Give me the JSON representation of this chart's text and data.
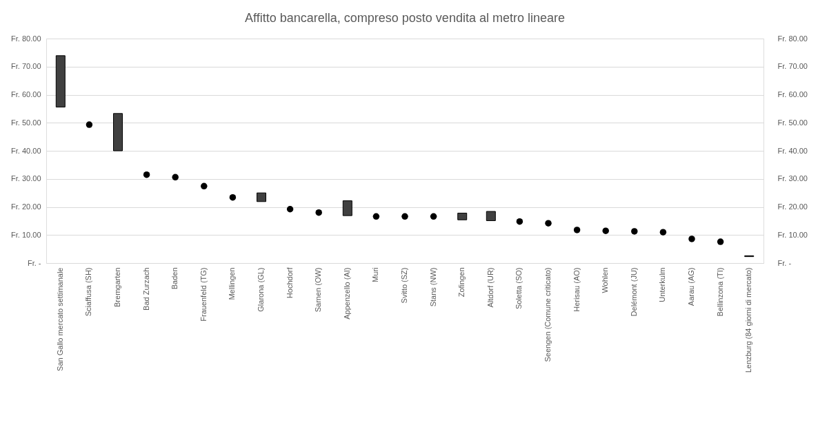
{
  "chart_data": {
    "type": "bar",
    "title": "Affitto bancarella, compreso posto vendita al metro lineare",
    "categories": [
      "San Gallo mercato settimanale",
      "Sciaffusa (SH)",
      "Bremgarten",
      "Bad Zurzach",
      "Baden",
      "Frauenfeld (TG)",
      "Mellingen",
      "Glarona (GL)",
      "Hochdorf",
      "Sarnen (OW)",
      "Appenzello (AI)",
      "Muri",
      "Svitto (SZ)",
      "Stans (NW)",
      "Zofingen",
      "Altdorf (UR)",
      "Soletta (SO)",
      "Seengen (Comune criticato)",
      "Herisau (AO)",
      "Wohlen",
      "Delémont (JU)",
      "Unterkulm",
      "Aarau (AG)",
      "Bellinzona (TI)",
      "Lenzburg (84 giorni di mercato)"
    ],
    "series": [
      {
        "color": "#404040",
        "base": [
          55.6,
          null,
          40,
          null,
          null,
          null,
          null,
          21.9,
          null,
          null,
          16.9,
          null,
          null,
          null,
          15.4,
          15.1,
          null,
          null,
          null,
          null,
          null,
          null,
          null,
          null,
          2.3
        ],
        "values": [
          18.3,
          null,
          13.3,
          null,
          null,
          null,
          null,
          3.1,
          null,
          null,
          5.3,
          null,
          null,
          null,
          2.4,
          3.3,
          null,
          null,
          null,
          null,
          null,
          null,
          null,
          null,
          0.3
        ]
      },
      {
        "type": "scatter",
        "color": "#000000",
        "marker": "circle",
        "values": [
          null,
          49.3,
          null,
          31.5,
          30.6,
          27.4,
          23.4,
          null,
          19.2,
          18.0,
          null,
          16.6,
          16.6,
          16.6,
          null,
          null,
          14.8,
          14.2,
          11.8,
          11.5,
          11.3,
          11.0,
          8.6,
          7.6,
          null
        ]
      }
    ],
    "ylim": [
      0,
      80
    ],
    "yticks": [
      {
        "value": 0,
        "label": "Fr. -"
      },
      {
        "value": 10,
        "label": "Fr. 10.00"
      },
      {
        "value": 20,
        "label": "Fr. 20.00"
      },
      {
        "value": 30,
        "label": "Fr. 30.00"
      },
      {
        "value": 40,
        "label": "Fr. 40.00"
      },
      {
        "value": 50,
        "label": "Fr. 50.00"
      },
      {
        "value": 60,
        "label": "Fr. 60.00"
      },
      {
        "value": 70,
        "label": "Fr. 70.00"
      },
      {
        "value": 80,
        "label": "Fr. 80.00"
      }
    ],
    "y2lim": [
      0,
      80
    ],
    "y2ticks": [
      {
        "value": 0,
        "label": "Fr. -"
      },
      {
        "value": 10,
        "label": "Fr. 10.00"
      },
      {
        "value": 20,
        "label": "Fr. 20.00"
      },
      {
        "value": 30,
        "label": "Fr. 30.00"
      },
      {
        "value": 40,
        "label": "Fr. 40.00"
      },
      {
        "value": 50,
        "label": "Fr. 50.00"
      },
      {
        "value": 60,
        "label": "Fr. 60.00"
      },
      {
        "value": 70,
        "label": "Fr. 70.00"
      },
      {
        "value": 80,
        "label": "Fr. 80.00"
      }
    ],
    "grid": "y"
  }
}
